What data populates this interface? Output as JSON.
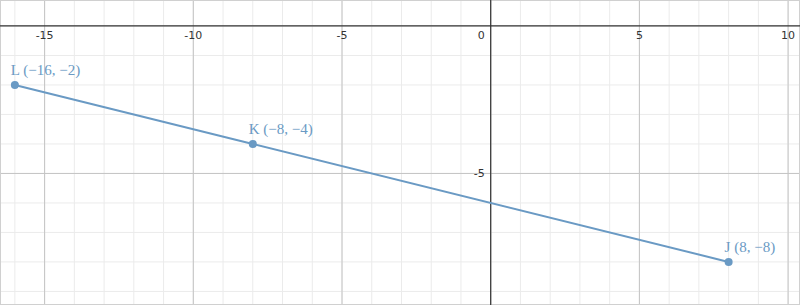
{
  "chart_data": {
    "type": "line",
    "xlim": [
      -16.5,
      10.4
    ],
    "ylim": [
      -9.46,
      0.88
    ],
    "xticks": [
      -15,
      -10,
      -5,
      0,
      5,
      10
    ],
    "yticks": [
      -5
    ],
    "grid": true,
    "series": [
      {
        "color": "#6a9ac4",
        "marker": "circle",
        "line_style": "solid",
        "x": [
          -16,
          -8,
          8
        ],
        "values": [
          -2,
          -4,
          -8
        ],
        "labels": [
          "L (−16, −2)",
          "K (−8, −4)",
          "J (8, −8)"
        ]
      }
    ]
  }
}
